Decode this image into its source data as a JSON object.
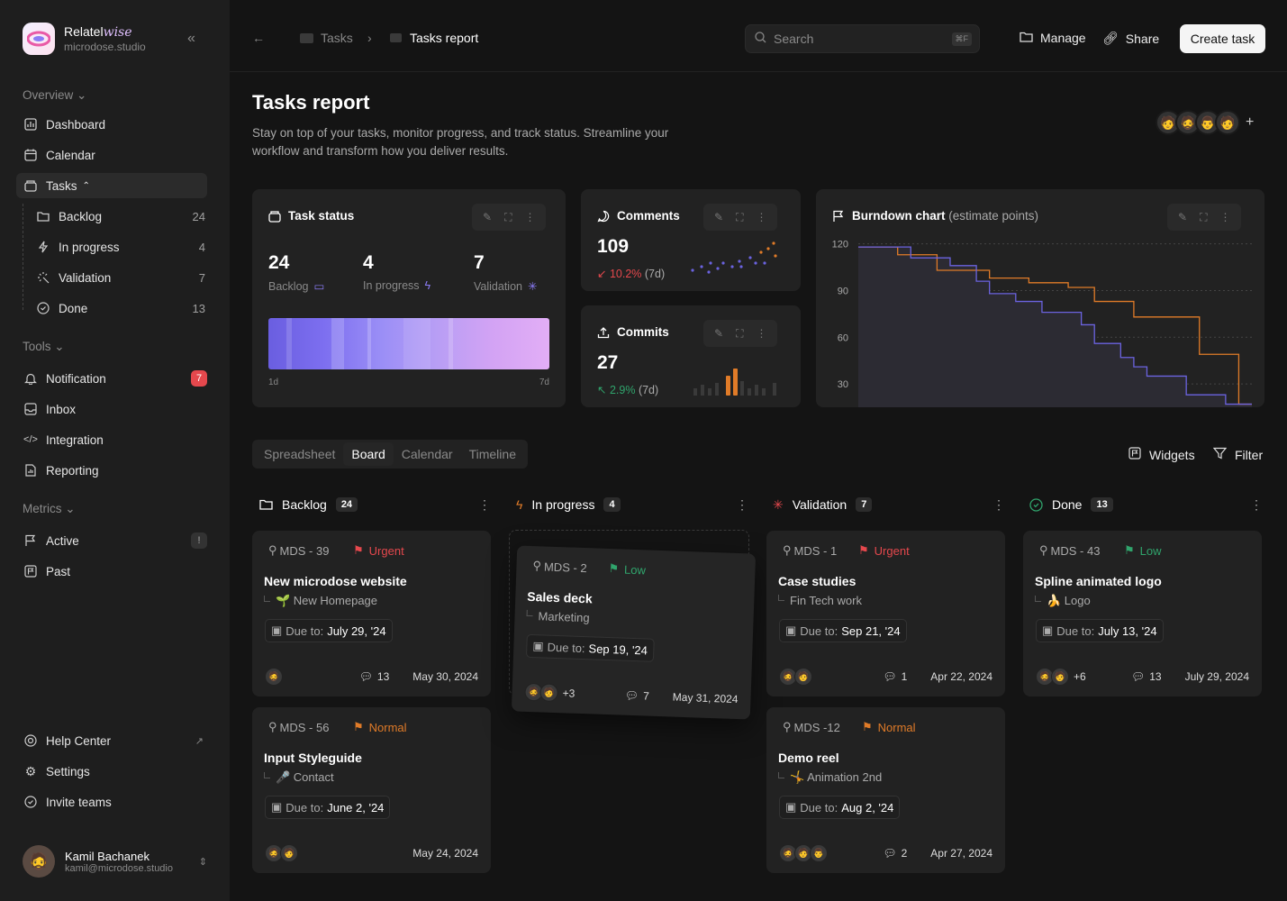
{
  "sidebar": {
    "brand_name": "Relatel",
    "brand_name_accent": "wise",
    "brand_sub": "microdose.studio",
    "overview": "Overview",
    "dashboard": "Dashboard",
    "calendar": "Calendar",
    "tasks": "Tasks",
    "sub": [
      {
        "label": "Backlog",
        "count": "24"
      },
      {
        "label": "In progress",
        "count": "4"
      },
      {
        "label": "Validation",
        "count": "7"
      },
      {
        "label": "Done",
        "count": "13"
      }
    ],
    "tools": "Tools",
    "notification": "Notification",
    "notification_badge": "7",
    "inbox": "Inbox",
    "integration": "Integration",
    "reporting": "Reporting",
    "metrics": "Metrics",
    "active": "Active",
    "active_badge": "!",
    "past": "Past",
    "help": "Help Center",
    "settings": "Settings",
    "invite": "Invite teams",
    "user_name": "Kamil Bachanek",
    "user_email": "kamil@microdose.studio"
  },
  "topbar": {
    "crumb1": "Tasks",
    "crumb2": "Tasks report",
    "search_placeholder": "Search",
    "search_kbd": "⌘F",
    "manage": "Manage",
    "share": "Share",
    "create": "Create task"
  },
  "page": {
    "title": "Tasks report",
    "desc": "Stay on top of your tasks, monitor progress, and track status. Streamline your workflow and transform how you deliver results."
  },
  "task_status": {
    "title": "Task status",
    "backlog_n": "24",
    "backlog_l": "Backlog",
    "progress_n": "4",
    "progress_l": "In progress",
    "validation_n": "7",
    "validation_l": "Validation",
    "axis_start": "1d",
    "axis_end": "7d"
  },
  "comments": {
    "title": "Comments",
    "value": "109",
    "delta": "10.2%",
    "period": "(7d)"
  },
  "commits": {
    "title": "Commits",
    "value": "27",
    "delta": "2.9%",
    "period": "(7d)"
  },
  "burndown": {
    "title": "Burndown chart",
    "subtitle": "(estimate points)"
  },
  "chart_data": {
    "type": "line",
    "title": "Burndown chart",
    "subtitle": "(estimate points)",
    "ylim": [
      15,
      125
    ],
    "y_ticks": [
      "120",
      "90",
      "60",
      "30"
    ],
    "grid": true,
    "series": [
      {
        "color": "#e07b28",
        "values": [
          118,
          118,
          118,
          113,
          113,
          113,
          103,
          103,
          103,
          103,
          98,
          98,
          98,
          95,
          95,
          95,
          92,
          92,
          83,
          83,
          83,
          73,
          73,
          73,
          73,
          73,
          49,
          49,
          49,
          17,
          17
        ]
      },
      {
        "color": "#6b63e0",
        "values": [
          118,
          118,
          118,
          118,
          111,
          111,
          111,
          106,
          106,
          96,
          88,
          88,
          83,
          83,
          76,
          76,
          76,
          68,
          56,
          56,
          47,
          41,
          35,
          35,
          35,
          23,
          23,
          23,
          17,
          17,
          17
        ]
      }
    ]
  },
  "view_tabs": [
    "Spreadsheet",
    "Board",
    "Calendar",
    "Timeline"
  ],
  "widgets": "Widgets",
  "filter": "Filter",
  "columns": [
    {
      "title": "Backlog",
      "count": "24"
    },
    {
      "title": "In progress",
      "count": "4"
    },
    {
      "title": "Validation",
      "count": "7"
    },
    {
      "title": "Done",
      "count": "13"
    }
  ],
  "due_label": "Due to:",
  "cards": [
    {
      "id": "MDS - 39",
      "prio": "Urgent",
      "title": "New microdose website",
      "sub": "🌱 New Homepage",
      "due": "July 29, '24",
      "comments": "13",
      "date": "May 30, 2024",
      "more": ""
    },
    {
      "id": "MDS - 56",
      "prio": "Normal",
      "title": "Input Styleguide",
      "sub": "🎤 Contact",
      "due": "June 2, '24",
      "comments": "",
      "date": "May 24, 2024",
      "more": ""
    },
    {
      "id": "MDS - 2",
      "prio": "Low",
      "title": "Sales deck",
      "sub": "Marketing",
      "due": "Sep 19, '24",
      "comments": "7",
      "date": "May 31, 2024",
      "more": "+3"
    },
    {
      "id": "MDS - 1",
      "prio": "Urgent",
      "title": "Case studies",
      "sub": "Fin Tech work",
      "due": "Sep 21, '24",
      "comments": "1",
      "date": "Apr 22, 2024",
      "more": ""
    },
    {
      "id": "MDS -12",
      "prio": "Normal",
      "title": "Demo reel",
      "sub": "🤸 Animation 2nd",
      "due": "Aug 2, '24",
      "comments": "2",
      "date": "Apr 27, 2024",
      "more": ""
    },
    {
      "id": "MDS - 43",
      "prio": "Low",
      "title": "Spline animated logo",
      "sub": "🍌 Logo",
      "due": "July 13, '24",
      "comments": "13",
      "date": "July 29, 2024",
      "more": "+6"
    }
  ]
}
